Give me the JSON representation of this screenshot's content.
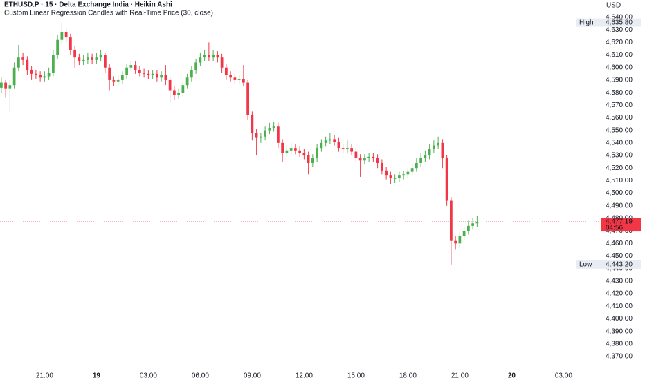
{
  "chart_data": {
    "type": "candlestick",
    "title": "ETHUSD.P · 15 · Delta Exchange India · Heikin Ashi",
    "subtitle": "Custom Linear Regression Candles with Real-Time Price (30, close)",
    "currency": "USD",
    "up_color": "#4caf50",
    "down_color": "#f23645",
    "open": [
      4584,
      4588,
      4583,
      4586,
      4600,
      4608,
      4606,
      4598,
      4595,
      4594,
      4592,
      4593,
      4596,
      4610,
      4622,
      4628,
      4624,
      4614,
      4608,
      4605,
      4606,
      4608,
      4606,
      4608,
      4610,
      4600,
      4590,
      4589,
      4590,
      4594,
      4600,
      4602,
      4598,
      4596,
      4595,
      4594,
      4595,
      4592,
      4594,
      4590,
      4582,
      4578,
      4580,
      4586,
      4592,
      4598,
      4604,
      4608,
      4610,
      4608,
      4610,
      4608,
      4600,
      4594,
      4592,
      4590,
      4591,
      4588,
      4562,
      4548,
      4544,
      4545,
      4550,
      4552,
      4553,
      4540,
      4532,
      4534,
      4536,
      4534,
      4532,
      4530,
      4524,
      4528,
      4536,
      4540,
      4542,
      4543,
      4541,
      4536,
      4535,
      4536,
      4533,
      4528,
      4526,
      4528,
      4529,
      4528,
      4524,
      4518,
      4514,
      4512,
      4512,
      4514,
      4515,
      4517,
      4520,
      4524,
      4528,
      4530,
      4535,
      4538,
      4540,
      4528,
      4494,
      4462,
      4460,
      4466,
      4470,
      4474,
      4476
    ],
    "high": [
      4592,
      4590,
      4590,
      4604,
      4618,
      4612,
      4609,
      4601,
      4598,
      4597,
      4597,
      4600,
      4614,
      4626,
      4635.8,
      4631,
      4627,
      4617,
      4611,
      4610,
      4612,
      4611,
      4612,
      4614,
      4612,
      4603,
      4593,
      4594,
      4597,
      4603,
      4605,
      4605,
      4601,
      4599,
      4598,
      4598,
      4598,
      4597,
      4602,
      4593,
      4585,
      4583,
      4589,
      4595,
      4601,
      4607,
      4612,
      4614,
      4620,
      4614,
      4613,
      4611,
      4603,
      4597,
      4595,
      4594,
      4602,
      4590,
      4565,
      4551,
      4548,
      4553,
      4556,
      4557,
      4556,
      4543,
      4538,
      4540,
      4539,
      4537,
      4535,
      4533,
      4531,
      4539,
      4543,
      4545,
      4548,
      4546,
      4544,
      4539,
      4542,
      4539,
      4536,
      4531,
      4531,
      4532,
      4532,
      4531,
      4527,
      4521,
      4517,
      4515,
      4517,
      4518,
      4520,
      4523,
      4528,
      4532,
      4534,
      4539,
      4542,
      4545,
      4543,
      4530,
      4497,
      4466,
      4469,
      4473,
      4478,
      4480,
      4482
    ],
    "low": [
      4580,
      4576,
      4565,
      4583,
      4597,
      4602,
      4594,
      4590,
      4591,
      4589,
      4589,
      4590,
      4593,
      4607,
      4619,
      4620,
      4610,
      4600,
      4602,
      4602,
      4603,
      4603,
      4603,
      4605,
      4596,
      4582,
      4585,
      4586,
      4587,
      4591,
      4597,
      4595,
      4593,
      4592,
      4591,
      4591,
      4589,
      4589,
      4586,
      4572,
      4574,
      4575,
      4577,
      4583,
      4589,
      4595,
      4601,
      4605,
      4605,
      4605,
      4604,
      4596,
      4590,
      4589,
      4587,
      4587,
      4585,
      4558,
      4542,
      4530,
      4540,
      4542,
      4547,
      4549,
      4536,
      4525,
      4529,
      4531,
      4531,
      4529,
      4527,
      4515,
      4521,
      4525,
      4533,
      4537,
      4539,
      4538,
      4533,
      4532,
      4532,
      4530,
      4525,
      4513,
      4523,
      4525,
      4525,
      4520,
      4515,
      4511,
      4507,
      4508,
      4509,
      4511,
      4512,
      4514,
      4517,
      4521,
      4525,
      4527,
      4532,
      4535,
      4520,
      4490,
      4443.2,
      4455,
      4456,
      4463,
      4467,
      4471,
      4473
    ],
    "close": [
      4588,
      4583,
      4586,
      4600,
      4608,
      4606,
      4598,
      4595,
      4594,
      4592,
      4593,
      4596,
      4610,
      4622,
      4628,
      4624,
      4614,
      4608,
      4605,
      4606,
      4608,
      4606,
      4608,
      4610,
      4600,
      4590,
      4589,
      4590,
      4594,
      4600,
      4602,
      4598,
      4596,
      4595,
      4594,
      4595,
      4592,
      4594,
      4590,
      4582,
      4578,
      4580,
      4586,
      4592,
      4598,
      4604,
      4608,
      4610,
      4608,
      4610,
      4608,
      4600,
      4594,
      4592,
      4590,
      4591,
      4588,
      4562,
      4548,
      4544,
      4545,
      4550,
      4552,
      4553,
      4540,
      4532,
      4534,
      4536,
      4534,
      4532,
      4530,
      4524,
      4528,
      4536,
      4540,
      4542,
      4543,
      4541,
      4536,
      4535,
      4536,
      4533,
      4528,
      4526,
      4528,
      4529,
      4528,
      4524,
      4518,
      4514,
      4512,
      4512,
      4514,
      4515,
      4517,
      4520,
      4524,
      4528,
      4530,
      4535,
      4538,
      4540,
      4528,
      4494,
      4462,
      4460,
      4466,
      4470,
      4474,
      4476,
      4477.19
    ],
    "xlim": [
      -0.3,
      138.1
    ],
    "xticks": [
      {
        "value": 10,
        "label": "21:00"
      },
      {
        "value": 22,
        "label": "19"
      },
      {
        "value": 34,
        "label": "03:00"
      },
      {
        "value": 46,
        "label": "06:00"
      },
      {
        "value": 58,
        "label": "09:00"
      },
      {
        "value": 70,
        "label": "12:00"
      },
      {
        "value": 82,
        "label": "15:00"
      },
      {
        "value": 94,
        "label": "18:00"
      },
      {
        "value": 106,
        "label": "21:00"
      },
      {
        "value": 118,
        "label": "20"
      },
      {
        "value": 130,
        "label": "03:00"
      }
    ],
    "ylim": [
      4370,
      4640
    ],
    "yticks": [
      {
        "value": 4640,
        "label": "4,640.00"
      },
      {
        "value": 4630,
        "label": "4,630.00"
      },
      {
        "value": 4620,
        "label": "4,620.00"
      },
      {
        "value": 4610,
        "label": "4,610.00"
      },
      {
        "value": 4600,
        "label": "4,600.00"
      },
      {
        "value": 4590,
        "label": "4,590.00"
      },
      {
        "value": 4580,
        "label": "4,580.00"
      },
      {
        "value": 4570,
        "label": "4,570.00"
      },
      {
        "value": 4560,
        "label": "4,560.00"
      },
      {
        "value": 4550,
        "label": "4,550.00"
      },
      {
        "value": 4540,
        "label": "4,540.00"
      },
      {
        "value": 4530,
        "label": "4,530.00"
      },
      {
        "value": 4520,
        "label": "4,520.00"
      },
      {
        "value": 4510,
        "label": "4,510.00"
      },
      {
        "value": 4500,
        "label": "4,500.00"
      },
      {
        "value": 4490,
        "label": "4,490.00"
      },
      {
        "value": 4480,
        "label": "4,480.00"
      },
      {
        "value": 4470,
        "label": "4,470.00"
      },
      {
        "value": 4460,
        "label": "4,460.00"
      },
      {
        "value": 4450,
        "label": "4,450.00"
      },
      {
        "value": 4440,
        "label": "4,440.00"
      },
      {
        "value": 4430,
        "label": "4,430.00"
      },
      {
        "value": 4420,
        "label": "4,420.00"
      },
      {
        "value": 4410,
        "label": "4,410.00"
      },
      {
        "value": 4400,
        "label": "4,400.00"
      },
      {
        "value": 4390,
        "label": "4,390.00"
      },
      {
        "value": 4380,
        "label": "4,380.00"
      },
      {
        "value": 4370,
        "label": "4,370.00"
      }
    ],
    "grid": false,
    "high_marker": {
      "label": "High",
      "value": 4635.8,
      "value_label": "4,635.80"
    },
    "low_marker": {
      "label": "Low",
      "value": 4443.2,
      "value_label": "4,443.20"
    },
    "last_price": {
      "value": 4477.19,
      "label": "4,477.19",
      "countdown": "04:56",
      "color": "#f23645"
    }
  }
}
